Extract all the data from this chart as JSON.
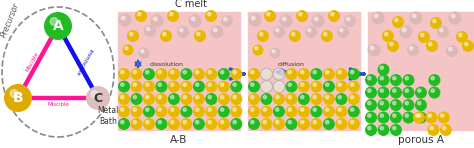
{
  "fig_width": 4.74,
  "fig_height": 1.48,
  "dpi": 100,
  "bg_color": "#ffffff",
  "panel_bg": "#f5c5c5",
  "node_A_color": "#22bb22",
  "node_B_color": "#ddaa00",
  "node_C_color": "#ddbfbf",
  "edge_AB_color": "#ff1493",
  "edge_BC_color": "#ff1493",
  "edge_AC_color": "#1111ee",
  "gold_color": "#e8b800",
  "green_color": "#22bb22",
  "pink_sphere": "#ddb8b8",
  "arrow_color": "#2255cc",
  "cmelt": "C melt",
  "dissolution": "dissolution",
  "diffusion": "diffusion",
  "label_AB": "A-B",
  "label_porousA": "porous A",
  "label_precursor": "Precursor",
  "label_metal_bath": "Metal\nBath",
  "label_miscible": "Miscible",
  "label_immiscible": "Immiscible"
}
